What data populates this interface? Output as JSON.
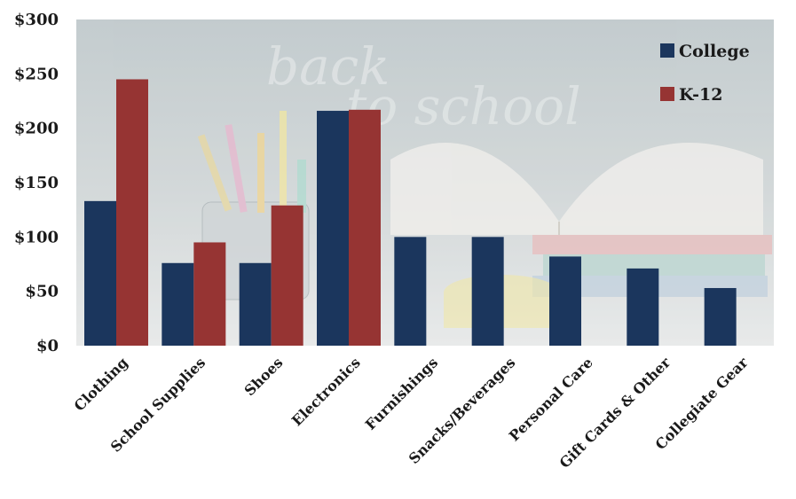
{
  "chart_data": {
    "type": "bar",
    "categories": [
      "Clothing",
      "School Supplies",
      "Shoes",
      "Electronics",
      "Furnishings",
      "Snacks/Beverages",
      "Personal Care",
      "Gift Cards & Other",
      "Collegiate Gear"
    ],
    "series": [
      {
        "name": "College",
        "color": "#1b365d",
        "values": [
          133,
          76,
          76,
          216,
          100,
          100,
          82,
          71,
          53
        ]
      },
      {
        "name": "K-12",
        "color": "#963433",
        "values": [
          245,
          95,
          129,
          217,
          null,
          null,
          null,
          null,
          null
        ]
      }
    ],
    "yticks": [
      "$0",
      "$50",
      "$100",
      "$150",
      "$200",
      "$250",
      "$300"
    ],
    "ylim": [
      0,
      300
    ],
    "legend_position": "top-right",
    "grid": false,
    "background": "faded back-to-school photo (chalkboard with 'back to school', pencils in cup, open books)"
  }
}
